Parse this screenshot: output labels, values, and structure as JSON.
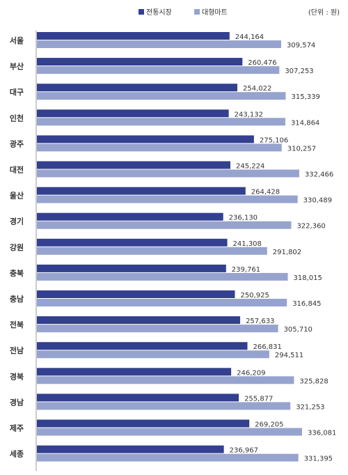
{
  "chart_data": {
    "type": "bar",
    "orientation": "horizontal",
    "unit_note": "(단위 : 원)",
    "legend_position": "top-right",
    "categories": [
      "서울",
      "부산",
      "대구",
      "인천",
      "광주",
      "대전",
      "울산",
      "경기",
      "강원",
      "충북",
      "충남",
      "전북",
      "전남",
      "경북",
      "경남",
      "제주",
      "세종"
    ],
    "series": [
      {
        "name": "전통시장",
        "color": "#333f8f",
        "values": [
          244164,
          260476,
          254022,
          243132,
          275106,
          245224,
          264428,
          236130,
          241308,
          239761,
          250925,
          257633,
          266831,
          246209,
          255877,
          269205,
          236967
        ],
        "labels": [
          "244,164",
          "260,476",
          "254,022",
          "243,132",
          "275,106",
          "245,224",
          "264,428",
          "236,130",
          "241,308",
          "239,761",
          "250,925",
          "257,633",
          "266,831",
          "246,209",
          "255,877",
          "269,205",
          "236,967"
        ]
      },
      {
        "name": "대형마트",
        "color": "#97a3cf",
        "values": [
          309574,
          307253,
          315339,
          314864,
          310257,
          332466,
          330489,
          322360,
          291802,
          318015,
          316845,
          305710,
          294511,
          325828,
          321253,
          336081,
          331395
        ],
        "labels": [
          "309,574",
          "307,253",
          "315,339",
          "314,864",
          "310,257",
          "332,466",
          "330,489",
          "322,360",
          "291,802",
          "318,015",
          "316,845",
          "305,710",
          "294,511",
          "325,828",
          "321,253",
          "336,081",
          "331,395"
        ]
      }
    ],
    "xlim": [
      0,
      440000
    ],
    "grid": false
  }
}
